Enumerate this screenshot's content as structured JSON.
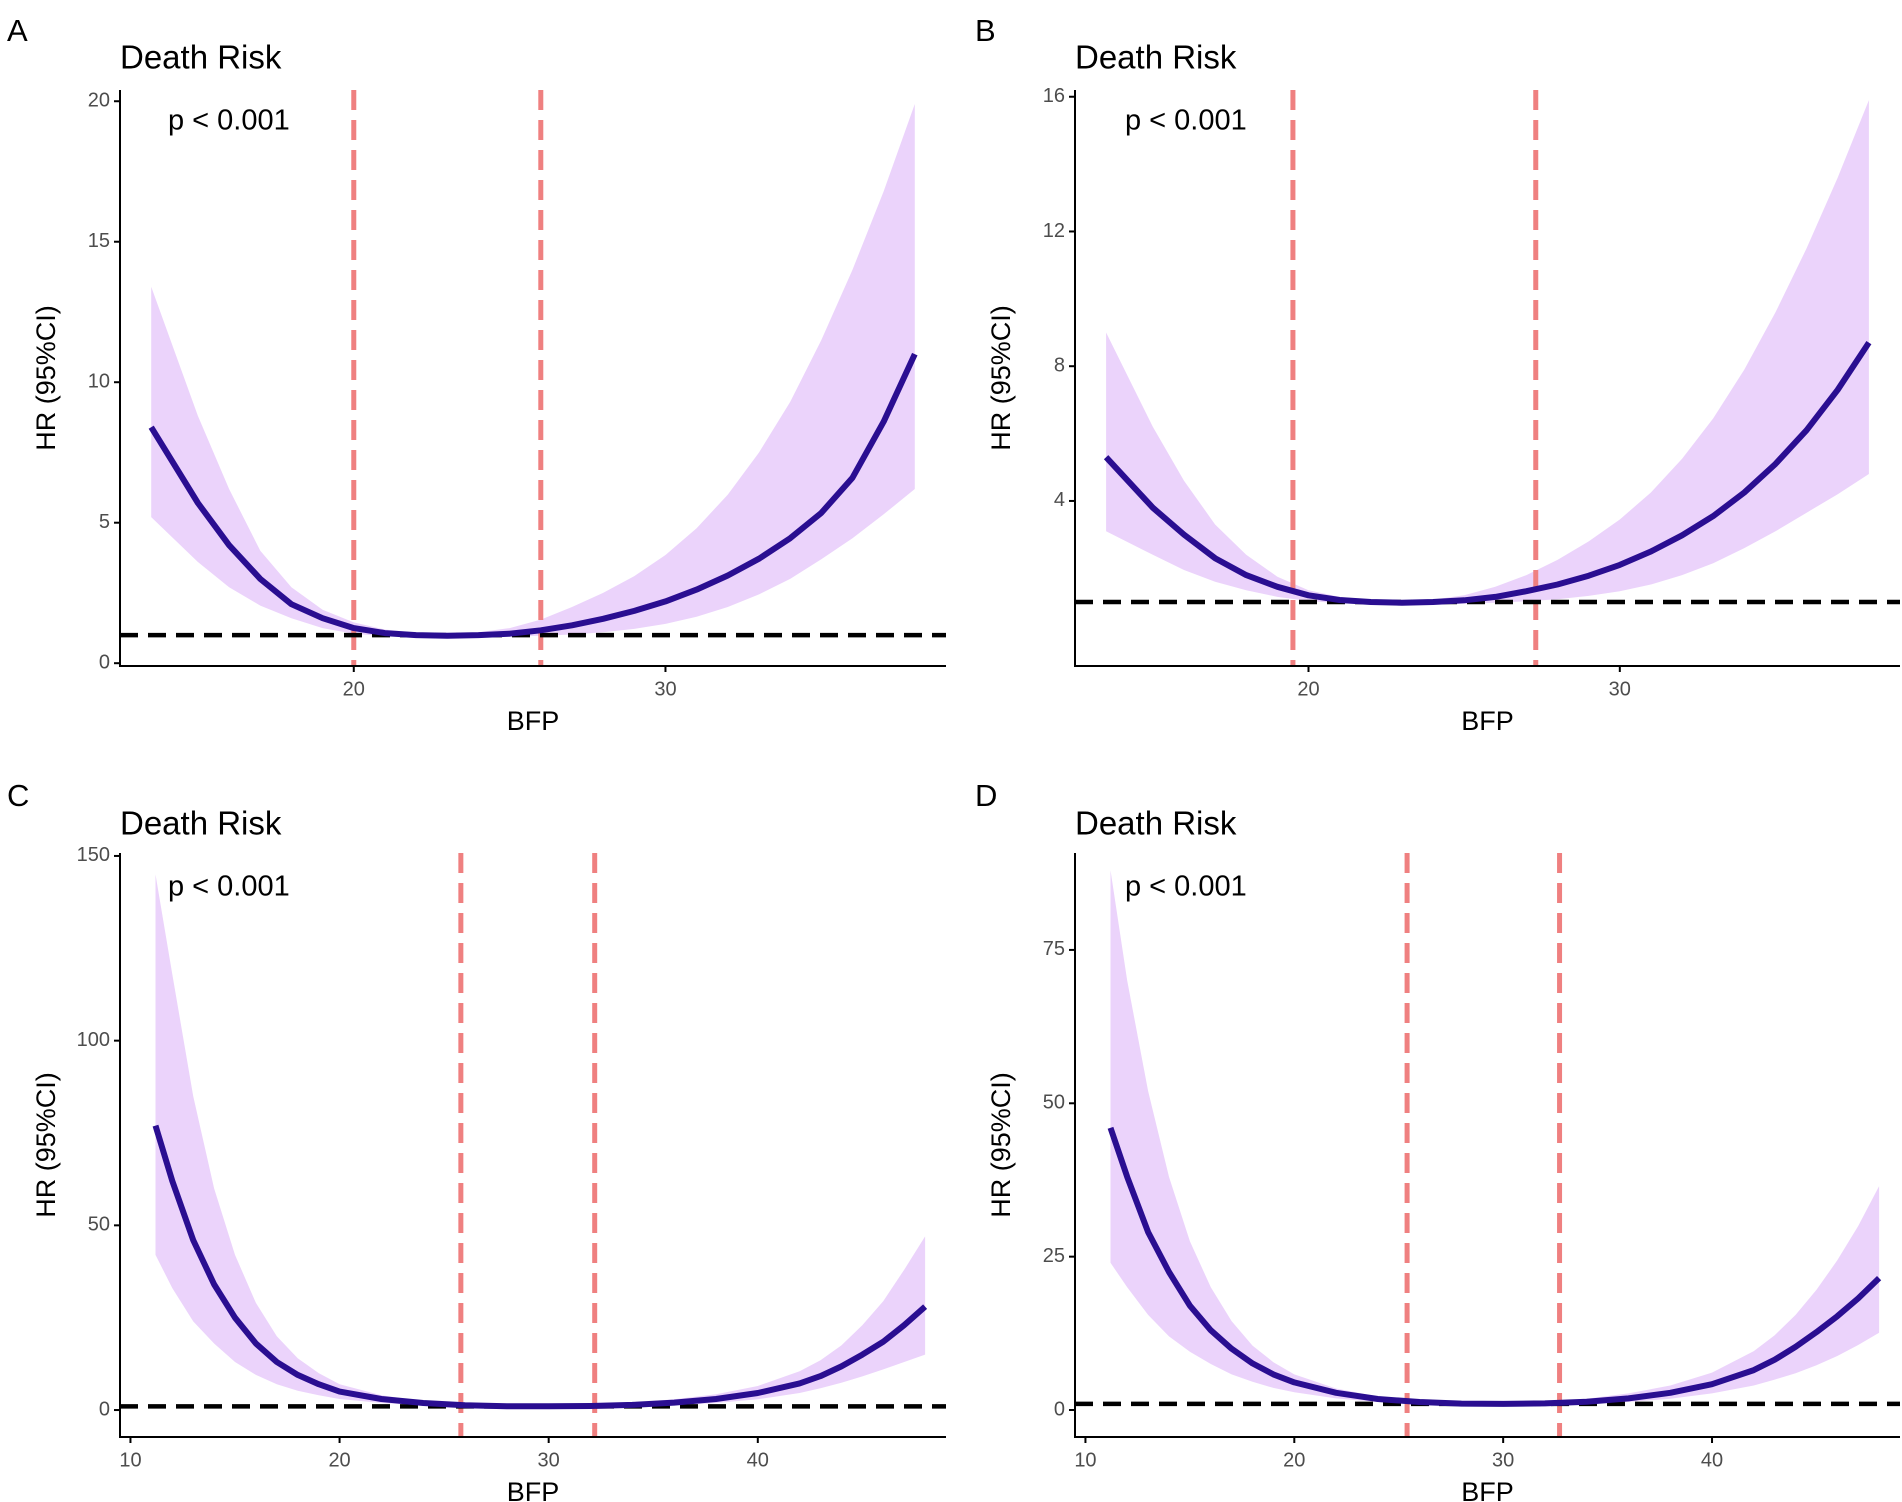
{
  "colors": {
    "ribbon": "#EBD3FB",
    "curve": "#2A0E91",
    "cutpoint": "#EF8080",
    "reference": "#000000",
    "axis": "#000000",
    "tick_text": "#4d4d4d"
  },
  "chart_data": [
    {
      "panel": "A",
      "type": "line",
      "title": "Death Risk",
      "annotation": "p < 0.001",
      "xlabel": "BFP",
      "ylabel": "HR (95%CI)",
      "xlim": [
        12.5,
        39
      ],
      "ylim": [
        -0.1,
        20.4
      ],
      "xticks": [
        20,
        30
      ],
      "xtick_labels": [
        "20",
        "30"
      ],
      "yticks": [
        0,
        5,
        10,
        15,
        20
      ],
      "ytick_labels": [
        "0",
        "5",
        "10",
        "15",
        "20"
      ],
      "reference_line": 1,
      "cutpoints": [
        20,
        26
      ],
      "series": [
        {
          "name": "HR",
          "x": [
            13.5,
            15,
            16,
            17,
            18,
            19,
            20,
            21,
            22,
            23,
            24,
            25,
            26,
            27,
            28,
            29,
            30,
            31,
            32,
            33,
            34,
            35,
            36,
            37,
            38
          ],
          "values": [
            8.4,
            5.7,
            4.2,
            3.0,
            2.1,
            1.6,
            1.25,
            1.07,
            1.0,
            0.98,
            1.0,
            1.05,
            1.17,
            1.35,
            1.58,
            1.86,
            2.2,
            2.62,
            3.12,
            3.72,
            4.45,
            5.35,
            6.6,
            8.6,
            11.0
          ]
        },
        {
          "name": "95% CI upper",
          "x": [
            13.5,
            15,
            16,
            17,
            18,
            19,
            20,
            21,
            22,
            23,
            24,
            25,
            26,
            27,
            28,
            29,
            30,
            31,
            32,
            33,
            34,
            35,
            36,
            37,
            38
          ],
          "values": [
            13.4,
            8.8,
            6.2,
            4.0,
            2.7,
            1.9,
            1.45,
            1.2,
            1.08,
            1.05,
            1.1,
            1.25,
            1.55,
            2.0,
            2.5,
            3.1,
            3.85,
            4.8,
            6.0,
            7.5,
            9.3,
            11.5,
            14.0,
            16.8,
            19.9
          ]
        },
        {
          "name": "95% CI lower",
          "x": [
            13.5,
            15,
            16,
            17,
            18,
            19,
            20,
            21,
            22,
            23,
            24,
            25,
            26,
            27,
            28,
            29,
            30,
            31,
            32,
            33,
            34,
            35,
            36,
            37,
            38
          ],
          "values": [
            5.2,
            3.6,
            2.7,
            2.05,
            1.6,
            1.25,
            1.05,
            0.96,
            0.93,
            0.92,
            0.93,
            0.95,
            0.98,
            1.02,
            1.1,
            1.22,
            1.4,
            1.65,
            2.0,
            2.45,
            3.0,
            3.7,
            4.45,
            5.3,
            6.2
          ]
        }
      ]
    },
    {
      "panel": "B",
      "type": "line",
      "title": "Death Risk",
      "annotation": "p < 0.001",
      "xlabel": "BFP",
      "ylabel": "HR (95%CI)",
      "xlim": [
        12.5,
        39
      ],
      "ylim": [
        -0.9,
        16.2
      ],
      "xticks": [
        20,
        30
      ],
      "xtick_labels": [
        "20",
        "30"
      ],
      "yticks": [
        4,
        8,
        12,
        16
      ],
      "ytick_labels": [
        "4",
        "8",
        "12",
        "16"
      ],
      "reference_line": 1,
      "cutpoints": [
        19.5,
        27.3
      ],
      "series": [
        {
          "name": "HR",
          "x": [
            13.5,
            15,
            16,
            17,
            18,
            19,
            20,
            21,
            22,
            23,
            24,
            25,
            26,
            27,
            28,
            29,
            30,
            31,
            32,
            33,
            34,
            35,
            36,
            37,
            38
          ],
          "values": [
            5.3,
            3.8,
            3.0,
            2.3,
            1.8,
            1.45,
            1.2,
            1.06,
            1.0,
            0.98,
            1.0,
            1.05,
            1.15,
            1.32,
            1.52,
            1.78,
            2.1,
            2.5,
            2.98,
            3.55,
            4.25,
            5.1,
            6.1,
            7.3,
            8.7
          ]
        },
        {
          "name": "95% CI upper",
          "x": [
            13.5,
            15,
            16,
            17,
            18,
            19,
            20,
            21,
            22,
            23,
            24,
            25,
            26,
            27,
            28,
            29,
            30,
            31,
            32,
            33,
            34,
            35,
            36,
            37,
            38
          ],
          "values": [
            9.0,
            6.2,
            4.6,
            3.3,
            2.4,
            1.75,
            1.35,
            1.15,
            1.06,
            1.03,
            1.07,
            1.2,
            1.45,
            1.8,
            2.25,
            2.8,
            3.45,
            4.25,
            5.25,
            6.45,
            7.9,
            9.6,
            11.5,
            13.6,
            15.9
          ]
        },
        {
          "name": "95% CI lower",
          "x": [
            13.5,
            15,
            16,
            17,
            18,
            19,
            20,
            21,
            22,
            23,
            24,
            25,
            26,
            27,
            28,
            29,
            30,
            31,
            32,
            33,
            34,
            35,
            36,
            37,
            38
          ],
          "values": [
            3.1,
            2.4,
            1.95,
            1.6,
            1.35,
            1.15,
            1.03,
            0.96,
            0.93,
            0.92,
            0.93,
            0.95,
            0.98,
            1.02,
            1.08,
            1.18,
            1.32,
            1.52,
            1.8,
            2.15,
            2.6,
            3.1,
            3.65,
            4.2,
            4.8
          ]
        }
      ]
    },
    {
      "panel": "C",
      "type": "line",
      "title": "Death Risk",
      "annotation": "p < 0.001",
      "xlabel": "BFP",
      "ylabel": "HR (95%CI)",
      "xlim": [
        9.5,
        49
      ],
      "ylim": [
        -7.3,
        150.8
      ],
      "xticks": [
        10,
        20,
        30,
        40
      ],
      "xtick_labels": [
        "10",
        "20",
        "30",
        "40"
      ],
      "yticks": [
        0,
        50,
        100,
        150
      ],
      "ytick_labels": [
        "0",
        "50",
        "100",
        "150"
      ],
      "reference_line": 1,
      "cutpoints": [
        25.8,
        32.2
      ],
      "series": [
        {
          "name": "HR",
          "x": [
            11.2,
            12,
            13,
            14,
            15,
            16,
            17,
            18,
            19,
            20,
            22,
            24,
            26,
            28,
            30,
            32,
            34,
            36,
            38,
            40,
            42,
            43,
            44,
            45,
            46,
            47,
            48
          ],
          "values": [
            77,
            62,
            46,
            34,
            25,
            18,
            13,
            9.5,
            7,
            5,
            3,
            1.9,
            1.3,
            1.05,
            1.0,
            1.1,
            1.4,
            2.0,
            3.0,
            4.6,
            7.2,
            9.2,
            11.8,
            15,
            18.5,
            23,
            28
          ]
        },
        {
          "name": "95% CI upper",
          "x": [
            11.2,
            12,
            13,
            14,
            15,
            16,
            17,
            18,
            19,
            20,
            22,
            24,
            26,
            28,
            30,
            32,
            34,
            36,
            38,
            40,
            42,
            43,
            44,
            45,
            46,
            47,
            48
          ],
          "values": [
            145,
            118,
            85,
            60,
            42,
            29,
            20,
            14,
            10,
            7,
            4,
            2.4,
            1.6,
            1.2,
            1.1,
            1.4,
            2.0,
            2.9,
            4.3,
            6.5,
            10.5,
            13.5,
            17.5,
            23,
            29.5,
            38,
            47
          ]
        },
        {
          "name": "95% CI lower",
          "x": [
            11.2,
            12,
            13,
            14,
            15,
            16,
            17,
            18,
            19,
            20,
            22,
            24,
            26,
            28,
            30,
            32,
            34,
            36,
            38,
            40,
            42,
            43,
            44,
            45,
            46,
            47,
            48
          ],
          "values": [
            42,
            33,
            24,
            18,
            13,
            9.5,
            7,
            5.2,
            4,
            3,
            1.9,
            1.3,
            1.0,
            0.9,
            0.88,
            0.9,
            1.0,
            1.3,
            1.9,
            2.9,
            4.6,
            5.9,
            7.4,
            9.1,
            11,
            13,
            15
          ]
        }
      ]
    },
    {
      "panel": "D",
      "type": "line",
      "title": "Death Risk",
      "annotation": "p < 0.001",
      "xlabel": "BFP",
      "ylabel": "HR (95%CI)",
      "xlim": [
        9.5,
        49
      ],
      "ylim": [
        -4.4,
        90.8
      ],
      "xticks": [
        10,
        20,
        30,
        40
      ],
      "xtick_labels": [
        "10",
        "20",
        "30",
        "40"
      ],
      "yticks": [
        0,
        25,
        50,
        75
      ],
      "ytick_labels": [
        "0",
        "25",
        "50",
        "75"
      ],
      "reference_line": 1,
      "cutpoints": [
        25.4,
        32.7
      ],
      "series": [
        {
          "name": "HR",
          "x": [
            11.2,
            12,
            13,
            14,
            15,
            16,
            17,
            18,
            19,
            20,
            22,
            24,
            26,
            28,
            30,
            32,
            34,
            36,
            38,
            40,
            42,
            43,
            44,
            45,
            46,
            47,
            48
          ],
          "values": [
            46,
            38,
            29,
            22.5,
            17,
            13,
            10,
            7.6,
            5.8,
            4.5,
            2.8,
            1.8,
            1.3,
            1.05,
            1.0,
            1.08,
            1.35,
            1.9,
            2.8,
            4.2,
            6.5,
            8.2,
            10.3,
            12.7,
            15.3,
            18.2,
            21.5
          ]
        },
        {
          "name": "95% CI upper",
          "x": [
            11.2,
            12,
            13,
            14,
            15,
            16,
            17,
            18,
            19,
            20,
            22,
            24,
            26,
            28,
            30,
            32,
            34,
            36,
            38,
            40,
            42,
            43,
            44,
            45,
            46,
            47,
            48
          ],
          "values": [
            88,
            70,
            52,
            38,
            27.5,
            20,
            14.5,
            10.5,
            7.8,
            5.8,
            3.5,
            2.2,
            1.55,
            1.2,
            1.1,
            1.3,
            1.85,
            2.7,
            4.0,
            6.1,
            9.6,
            12.2,
            15.5,
            19.6,
            24.4,
            30,
            36.5
          ]
        },
        {
          "name": "95% CI lower",
          "x": [
            11.2,
            12,
            13,
            14,
            15,
            16,
            17,
            18,
            19,
            20,
            22,
            24,
            26,
            28,
            30,
            32,
            34,
            36,
            38,
            40,
            42,
            43,
            44,
            45,
            46,
            47,
            48
          ],
          "values": [
            24,
            20,
            15.5,
            12,
            9.5,
            7.5,
            5.8,
            4.6,
            3.6,
            2.9,
            1.9,
            1.3,
            1.0,
            0.9,
            0.88,
            0.9,
            1.0,
            1.3,
            1.85,
            2.7,
            4.0,
            4.95,
            6.0,
            7.3,
            8.8,
            10.6,
            12.6
          ]
        }
      ]
    }
  ]
}
